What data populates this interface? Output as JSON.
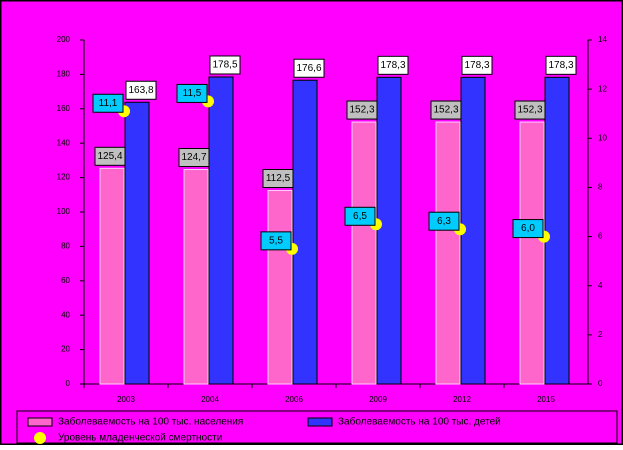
{
  "chart_data": {
    "type": "bar",
    "categories": [
      "2003",
      "2004",
      "2006",
      "2009",
      "2012",
      "2015"
    ],
    "series": [
      {
        "name": "Заболеваемость на 100 тыс. населения",
        "color": "#ff66cc",
        "values": [
          125.4,
          124.7,
          112.5,
          152.3,
          152.3,
          152.3
        ],
        "value_labels": [
          "125,4",
          "124,7",
          "112,5",
          "152,3",
          "152,3",
          "152,3"
        ]
      },
      {
        "name": "Заболеваемость на 100 тыс. детей",
        "color": "#3333ff",
        "values": [
          163.8,
          178.5,
          176.6,
          178.3,
          178.3,
          178.3
        ],
        "value_labels": [
          "163,8",
          "178,5",
          "176,6",
          "178,3",
          "178,3",
          "178,3"
        ]
      },
      {
        "name": "Уровень младенческой смертности",
        "color": "#ffff00",
        "axis": "y2",
        "values": [
          11.1,
          11.5,
          5.5,
          6.5,
          6.3,
          6.0
        ],
        "value_labels": [
          "11,1",
          "11,5",
          "5,5",
          "6,5",
          "6,3",
          "6,0"
        ]
      }
    ],
    "ylim": [
      0,
      200
    ],
    "yticks": [
      0,
      20,
      40,
      60,
      80,
      100,
      120,
      140,
      160,
      180,
      200
    ],
    "y2lim": [
      0,
      14
    ],
    "y2ticks": [
      0,
      2,
      4,
      6,
      8,
      10,
      12,
      14
    ]
  }
}
